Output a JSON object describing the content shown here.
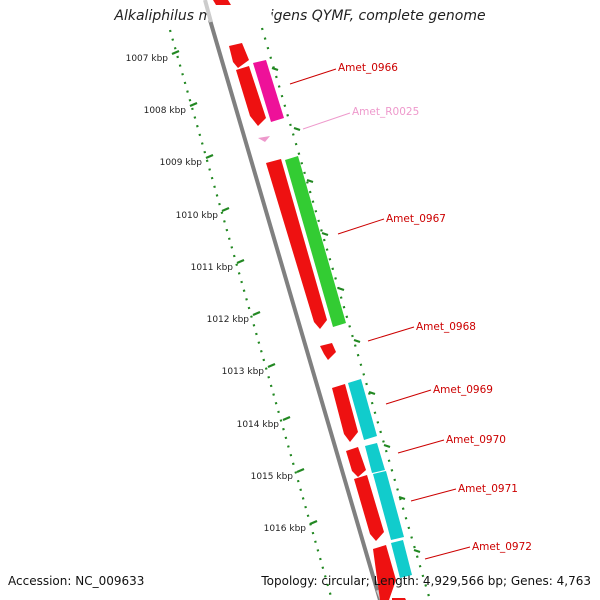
{
  "title": "Alkaliphilus metalliredigens QYMF, complete genome",
  "footer": {
    "accession": "Accession: NC_009633",
    "summary": "Topology: circular; Length: 4,929,566 bp; Genes: 4,763"
  },
  "colors": {
    "cds_red": "#ee1111",
    "rrna_magenta": "#ee1199",
    "rrna_label": "#ee99cc",
    "green_feature": "#33cc33",
    "cyan_feature": "#11cccc",
    "backbone": "#808080",
    "tick_green": "#228822",
    "label_red": "#cc0000"
  },
  "ruler": {
    "labels": [
      "1007 kbp",
      "1008 kbp",
      "1009 kbp",
      "1010 kbp",
      "1011 kbp",
      "1012 kbp",
      "1013 kbp",
      "1014 kbp",
      "1015 kbp",
      "1016 kbp"
    ]
  },
  "gene_labels": [
    {
      "name": "Amet_0966",
      "color": "#cc0000"
    },
    {
      "name": "Amet_R0025",
      "color": "#ee99cc"
    },
    {
      "name": "Amet_0967",
      "color": "#cc0000"
    },
    {
      "name": "Amet_0968",
      "color": "#cc0000"
    },
    {
      "name": "Amet_0969",
      "color": "#cc0000"
    },
    {
      "name": "Amet_0970",
      "color": "#cc0000"
    },
    {
      "name": "Amet_0971",
      "color": "#cc0000"
    },
    {
      "name": "Amet_0972",
      "color": "#cc0000"
    }
  ]
}
